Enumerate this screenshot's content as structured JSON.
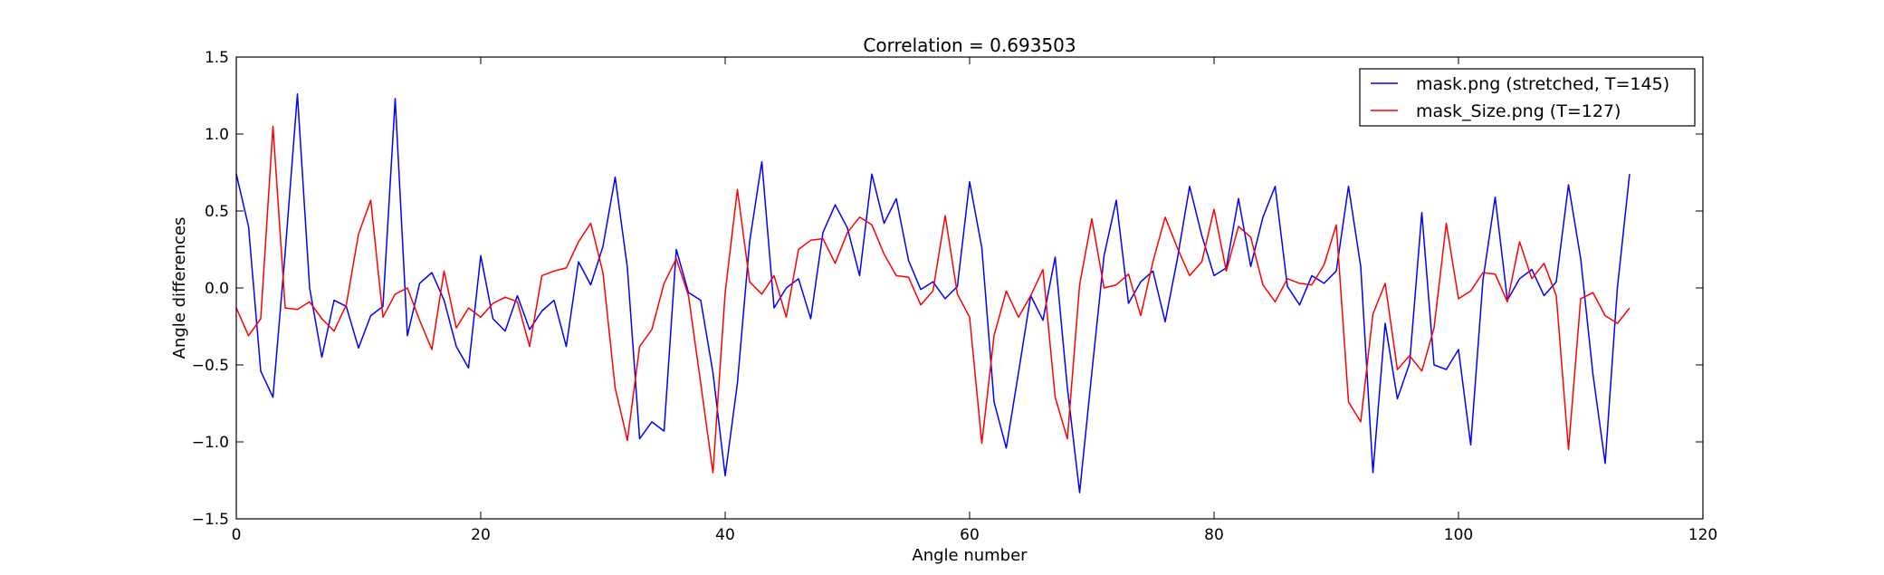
{
  "chart_data": {
    "type": "line",
    "title": "Correlation = 0.693503",
    "xlabel": "Angle number",
    "ylabel": "Angle differences",
    "xlim": [
      0,
      120
    ],
    "ylim": [
      -1.5,
      1.5
    ],
    "xticks": [
      0,
      20,
      40,
      60,
      80,
      100,
      120
    ],
    "yticks": [
      -1.5,
      -1.0,
      -0.5,
      0.0,
      0.5,
      1.0,
      1.5
    ],
    "xtick_labels": [
      "0",
      "20",
      "40",
      "60",
      "80",
      "100",
      "120"
    ],
    "ytick_labels": [
      "−1.5",
      "−1.0",
      "−0.5",
      "0.0",
      "0.5",
      "1.0",
      "1.5"
    ],
    "grid": false,
    "legend_position": "top-right",
    "series": [
      {
        "name": "mask.png (stretched, T=145)",
        "color": "#0000ff",
        "values": [
          0.74,
          0.4,
          -0.54,
          -0.71,
          0.23,
          1.26,
          0.0,
          -0.45,
          -0.08,
          -0.12,
          -0.39,
          -0.18,
          -0.12,
          1.23,
          -0.31,
          0.03,
          0.1,
          -0.08,
          -0.38,
          -0.52,
          0.21,
          -0.2,
          -0.28,
          -0.05,
          -0.27,
          -0.15,
          -0.08,
          -0.38,
          0.17,
          0.02,
          0.27,
          0.72,
          0.13,
          -0.98,
          -0.87,
          -0.93,
          0.25,
          -0.03,
          -0.08,
          -0.55,
          -1.22,
          -0.62,
          0.3,
          0.82,
          -0.13,
          0.0,
          0.06,
          -0.2,
          0.36,
          0.54,
          0.39,
          0.08,
          0.74,
          0.42,
          0.58,
          0.18,
          -0.01,
          0.04,
          -0.07,
          0.01,
          0.69,
          0.26,
          -0.74,
          -1.04,
          -0.55,
          -0.05,
          -0.21,
          0.2,
          -0.65,
          -1.33,
          -0.55,
          0.21,
          0.57,
          -0.1,
          0.04,
          0.11,
          -0.22,
          0.19,
          0.66,
          0.34,
          0.08,
          0.13,
          0.58,
          0.14,
          0.46,
          0.66,
          0.01,
          -0.11,
          0.08,
          0.03,
          0.11,
          0.66,
          0.14,
          -1.2,
          -0.23,
          -0.72,
          -0.49,
          0.49,
          -0.5,
          -0.53,
          -0.4,
          -1.02,
          0.05,
          0.59,
          -0.08,
          0.06,
          0.12,
          -0.05,
          0.04,
          0.67,
          0.19,
          -0.56,
          -1.14,
          0.0,
          0.74
        ]
      },
      {
        "name": "mask_Size.png (T=127)",
        "color": "#ff0000",
        "values": [
          -0.13,
          -0.31,
          -0.2,
          1.05,
          -0.13,
          -0.14,
          -0.09,
          -0.2,
          -0.28,
          -0.11,
          0.35,
          0.57,
          -0.19,
          -0.04,
          0.0,
          -0.21,
          -0.4,
          0.11,
          -0.26,
          -0.13,
          -0.19,
          -0.1,
          -0.06,
          -0.09,
          -0.38,
          0.08,
          0.11,
          0.13,
          0.3,
          0.42,
          0.1,
          -0.65,
          -0.99,
          -0.38,
          -0.27,
          0.03,
          0.19,
          -0.05,
          -0.62,
          -1.2,
          -0.03,
          0.64,
          0.04,
          -0.04,
          0.08,
          -0.19,
          0.25,
          0.31,
          0.32,
          0.16,
          0.36,
          0.46,
          0.41,
          0.22,
          0.08,
          0.07,
          -0.11,
          -0.02,
          0.47,
          -0.04,
          -0.19,
          -1.01,
          -0.31,
          -0.02,
          -0.19,
          -0.05,
          0.12,
          -0.71,
          -0.98,
          0.02,
          0.45,
          0.0,
          0.02,
          0.09,
          -0.18,
          0.17,
          0.46,
          0.26,
          0.08,
          0.17,
          0.51,
          0.11,
          0.4,
          0.33,
          0.02,
          -0.09,
          0.06,
          0.03,
          0.02,
          0.15,
          0.41,
          -0.74,
          -0.87,
          -0.17,
          0.03,
          -0.53,
          -0.44,
          -0.54,
          -0.26,
          0.42,
          -0.07,
          -0.02,
          0.1,
          0.09,
          -0.09,
          0.3,
          0.06,
          0.16,
          -0.05,
          -1.05,
          -0.07,
          -0.03,
          -0.18,
          -0.23,
          -0.13
        ]
      }
    ]
  }
}
